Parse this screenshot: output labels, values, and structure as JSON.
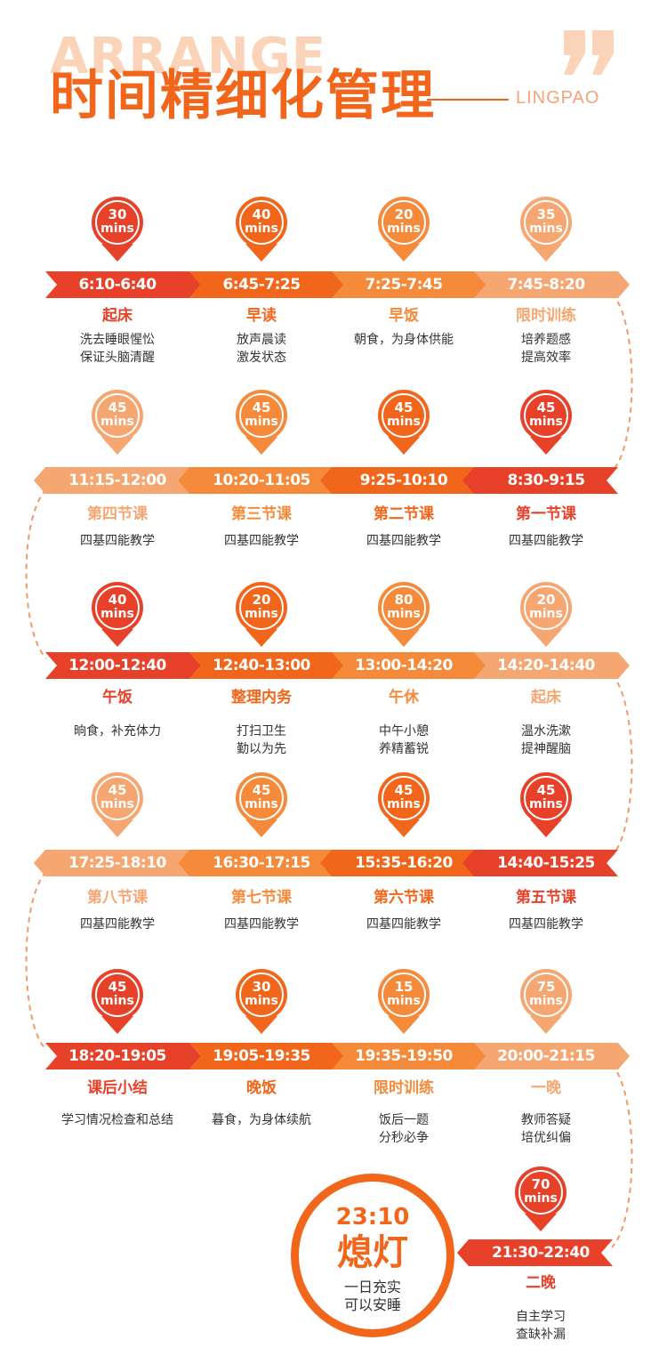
{
  "header": {
    "bg_word": "ARRANGE",
    "title": "时间精细化管理",
    "brand": "LINGPAO"
  },
  "colors": {
    "red": "#e8412a",
    "dark_orange": "#f2661b",
    "orange": "#f58a3a",
    "light_orange": "#f6a671",
    "dash": "#f29b6a"
  },
  "rows": [
    {
      "dir": "right",
      "items": [
        {
          "mins": "30",
          "unit": "mins",
          "time": "6:10-6:40",
          "activity": "起床",
          "desc": [
            "洗去睡眼惺忪",
            "保证头脑清醒"
          ],
          "shade": "red"
        },
        {
          "mins": "40",
          "unit": "mins",
          "time": "6:45-7:25",
          "activity": "早读",
          "desc": [
            "放声晨读",
            "激发状态"
          ],
          "shade": "dark_orange"
        },
        {
          "mins": "20",
          "unit": "mins",
          "time": "7:25-7:45",
          "activity": "早饭",
          "desc": [
            "朝食，为身体供能"
          ],
          "shade": "orange"
        },
        {
          "mins": "35",
          "unit": "mins",
          "time": "7:45-8:20",
          "activity": "限时训练",
          "desc": [
            "培养题感",
            "提高效率"
          ],
          "shade": "light_orange"
        }
      ]
    },
    {
      "dir": "left",
      "items": [
        {
          "mins": "45",
          "unit": "mins",
          "time": "11:15-12:00",
          "activity": "第四节课",
          "desc": [
            "四基四能教学"
          ],
          "shade": "light_orange"
        },
        {
          "mins": "45",
          "unit": "mins",
          "time": "10:20-11:05",
          "activity": "第三节课",
          "desc": [
            "四基四能教学"
          ],
          "shade": "orange"
        },
        {
          "mins": "45",
          "unit": "mins",
          "time": "9:25-10:10",
          "activity": "第二节课",
          "desc": [
            "四基四能教学"
          ],
          "shade": "dark_orange"
        },
        {
          "mins": "45",
          "unit": "mins",
          "time": "8:30-9:15",
          "activity": "第一节课",
          "desc": [
            "四基四能教学"
          ],
          "shade": "red"
        }
      ]
    },
    {
      "dir": "right",
      "items": [
        {
          "mins": "40",
          "unit": "mins",
          "time": "12:00-12:40",
          "activity": "午饭",
          "desc": [
            "晌食，补充体力"
          ],
          "shade": "red"
        },
        {
          "mins": "20",
          "unit": "mins",
          "time": "12:40-13:00",
          "activity": "整理内务",
          "desc": [
            "打扫卫生",
            "勤以为先"
          ],
          "shade": "dark_orange"
        },
        {
          "mins": "80",
          "unit": "mins",
          "time": "13:00-14:20",
          "activity": "午休",
          "desc": [
            "中午小憩",
            "养精蓄锐"
          ],
          "shade": "orange"
        },
        {
          "mins": "20",
          "unit": "mins",
          "time": "14:20-14:40",
          "activity": "起床",
          "desc": [
            "温水洗漱",
            "提神醒脑"
          ],
          "shade": "light_orange"
        }
      ]
    },
    {
      "dir": "left",
      "items": [
        {
          "mins": "45",
          "unit": "mins",
          "time": "17:25-18:10",
          "activity": "第八节课",
          "desc": [
            "四基四能教学"
          ],
          "shade": "light_orange"
        },
        {
          "mins": "45",
          "unit": "mins",
          "time": "16:30-17:15",
          "activity": "第七节课",
          "desc": [
            "四基四能教学"
          ],
          "shade": "orange"
        },
        {
          "mins": "45",
          "unit": "mins",
          "time": "15:35-16:20",
          "activity": "第六节课",
          "desc": [
            "四基四能教学"
          ],
          "shade": "dark_orange"
        },
        {
          "mins": "45",
          "unit": "mins",
          "time": "14:40-15:25",
          "activity": "第五节课",
          "desc": [
            "四基四能教学"
          ],
          "shade": "red"
        }
      ]
    },
    {
      "dir": "right",
      "items": [
        {
          "mins": "45",
          "unit": "mins",
          "time": "18:20-19:05",
          "activity": "课后小结",
          "desc": [
            "学习情况检查和总结"
          ],
          "shade": "red"
        },
        {
          "mins": "30",
          "unit": "mins",
          "time": "19:05-19:35",
          "activity": "晚饭",
          "desc": [
            "暮食，为身体续航"
          ],
          "shade": "dark_orange"
        },
        {
          "mins": "15",
          "unit": "mins",
          "time": "19:35-19:50",
          "activity": "限时训练",
          "desc": [
            "饭后一题",
            "分秒必争"
          ],
          "shade": "orange"
        },
        {
          "mins": "75",
          "unit": "mins",
          "time": "20:00-21:15",
          "activity": "一晚",
          "desc": [
            "教师答疑",
            "培优纠偏"
          ],
          "shade": "light_orange"
        }
      ]
    },
    {
      "dir": "left",
      "items": [
        {
          "mins": "70",
          "unit": "mins",
          "time": "21:30-22:40",
          "activity": "二晚",
          "desc": [
            "自主学习",
            "查缺补漏"
          ],
          "shade": "red"
        }
      ]
    }
  ],
  "final": {
    "time": "23:10",
    "label": "熄灯",
    "desc": [
      "一日充实",
      "可以安睡"
    ]
  }
}
